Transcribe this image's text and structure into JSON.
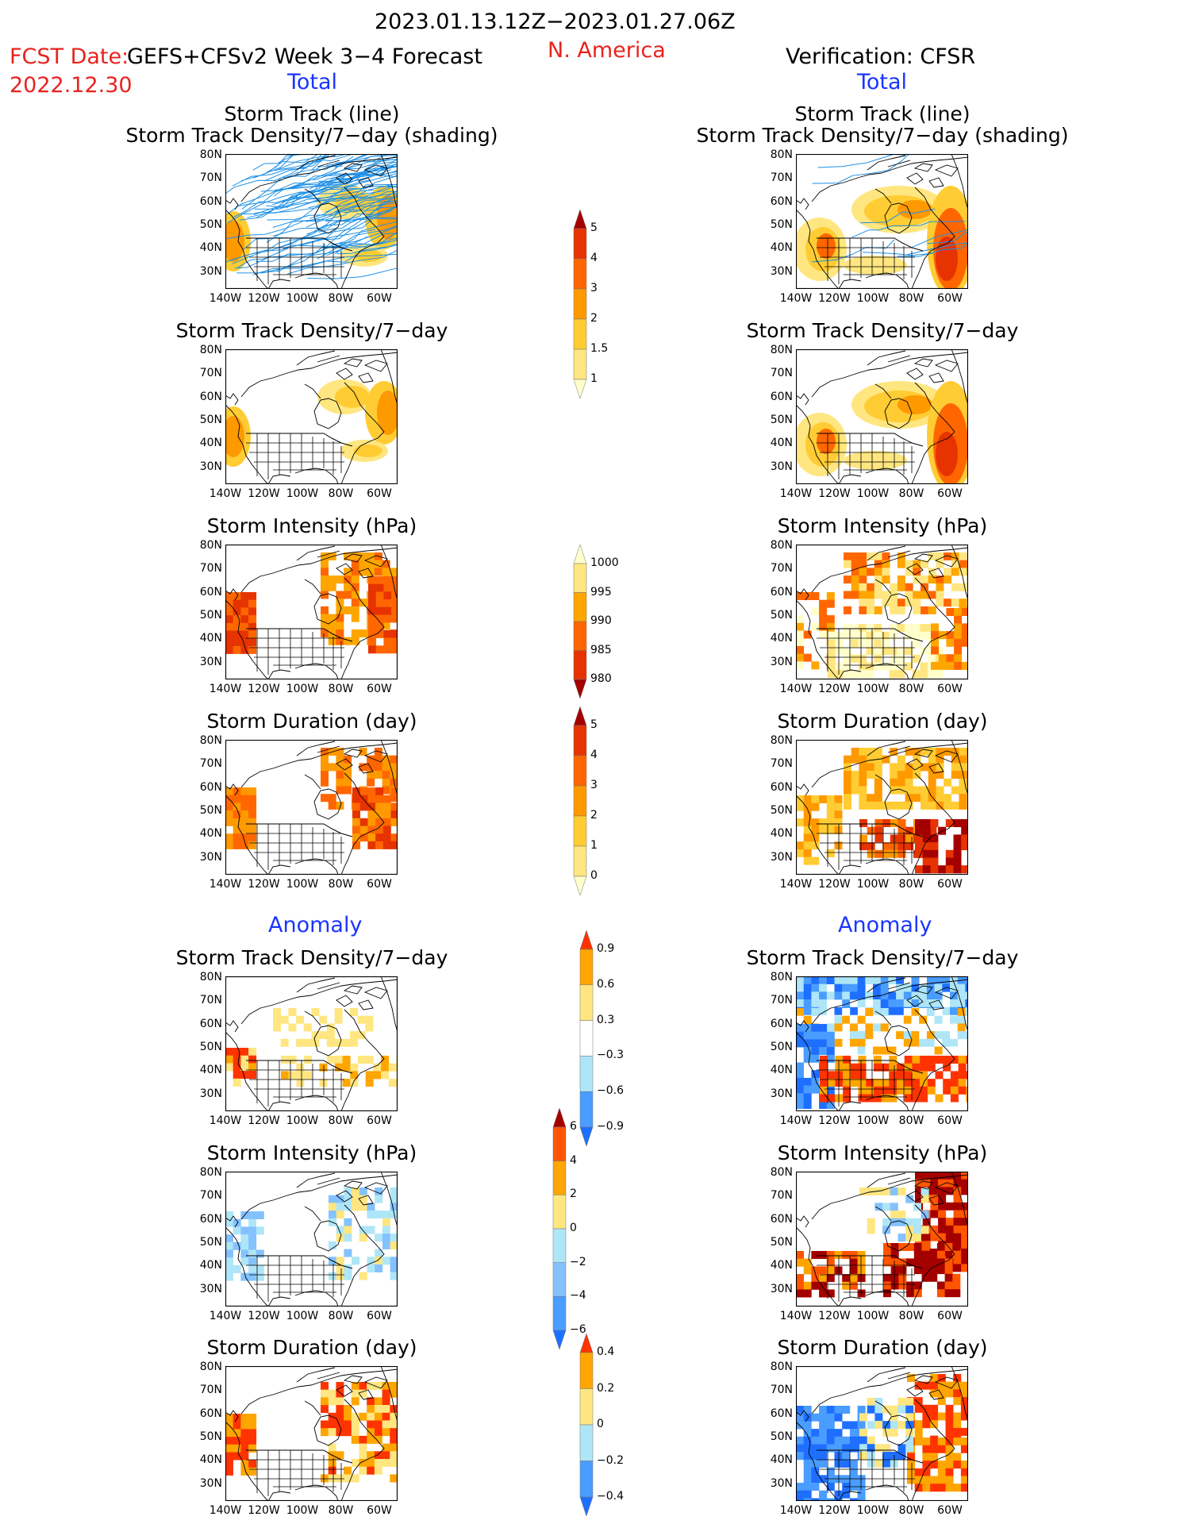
{
  "header": {
    "period": "2023.01.13.12Z−2023.01.27.06Z",
    "region": "N. America",
    "fcst_label": "FCST Date:",
    "model": "GEFS+CFSv2 Week 3−4 Forecast",
    "fcst_date": "2022.12.30",
    "verification": "Verification: CFSR",
    "total_left": "Total",
    "total_right": "Total",
    "anomaly_left": "Anomaly",
    "anomaly_right": "Anomaly"
  },
  "panel_titles": {
    "track_line": "Storm Track (line)",
    "track_shading": "Storm Track Density/7−day (shading)",
    "density": "Storm Track Density/7−day",
    "intensity": "Storm Intensity (hPa)",
    "duration": "Storm Duration (day)"
  },
  "axes": {
    "lat_labels": [
      "80N",
      "70N",
      "60N",
      "50N",
      "40N",
      "30N"
    ],
    "lon_labels": [
      "140W",
      "120W",
      "100W",
      "80W",
      "60W"
    ]
  },
  "colorbars": {
    "density": {
      "labels": [
        "5",
        "4",
        "3",
        "2",
        "1.5",
        "1"
      ],
      "colors": [
        "#ffffcc",
        "#ffe680",
        "#ffcc33",
        "#ff9900",
        "#ff6600",
        "#e63300",
        "#a50000"
      ]
    },
    "intensity": {
      "labels": [
        "1000",
        "995",
        "990",
        "985",
        "980"
      ],
      "colors": [
        "#ffffcc",
        "#ffe680",
        "#ffa500",
        "#ff6600",
        "#e63300",
        "#a50000"
      ]
    },
    "duration": {
      "labels": [
        "5",
        "4",
        "3",
        "2",
        "1",
        "0"
      ],
      "colors": [
        "#ffffcc",
        "#ffe680",
        "#ffcc33",
        "#ff9900",
        "#ff6600",
        "#e63300",
        "#a50000"
      ]
    },
    "density_anom": {
      "labels": [
        "0.9",
        "0.6",
        "0.3",
        "−0.3",
        "−0.6",
        "−0.9"
      ],
      "colors": [
        "#1e6fff",
        "#4a9cff",
        "#aee6f7",
        "#ffffff",
        "#ffe680",
        "#ffa500",
        "#ff3300"
      ]
    },
    "intensity_anom": {
      "labels": [
        "6",
        "4",
        "2",
        "0",
        "−2",
        "−4",
        "−6"
      ],
      "colors": [
        "#1e6fff",
        "#4a9cff",
        "#84c1ff",
        "#aee6f7",
        "#ffe680",
        "#ffa500",
        "#ff5500",
        "#a50000"
      ]
    },
    "duration_anom": {
      "labels": [
        "0.4",
        "0.2",
        "0",
        "−0.2",
        "−0.4"
      ],
      "colors": [
        "#1e6fff",
        "#4a9cff",
        "#aee6f7",
        "#ffe680",
        "#ffa500",
        "#ff3300"
      ]
    }
  },
  "legend_colors": {
    "track_line": "#1e90e6",
    "warm": "#ff9900",
    "hot": "#e63300",
    "cold": "#1e6fff"
  }
}
